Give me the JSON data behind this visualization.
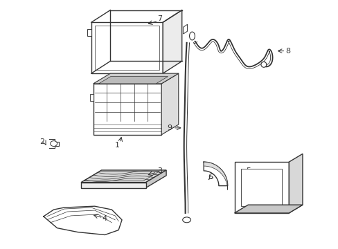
{
  "background_color": "#ffffff",
  "line_color": "#333333",
  "lw": 1.0,
  "fig_width": 4.89,
  "fig_height": 3.6,
  "dpi": 100
}
